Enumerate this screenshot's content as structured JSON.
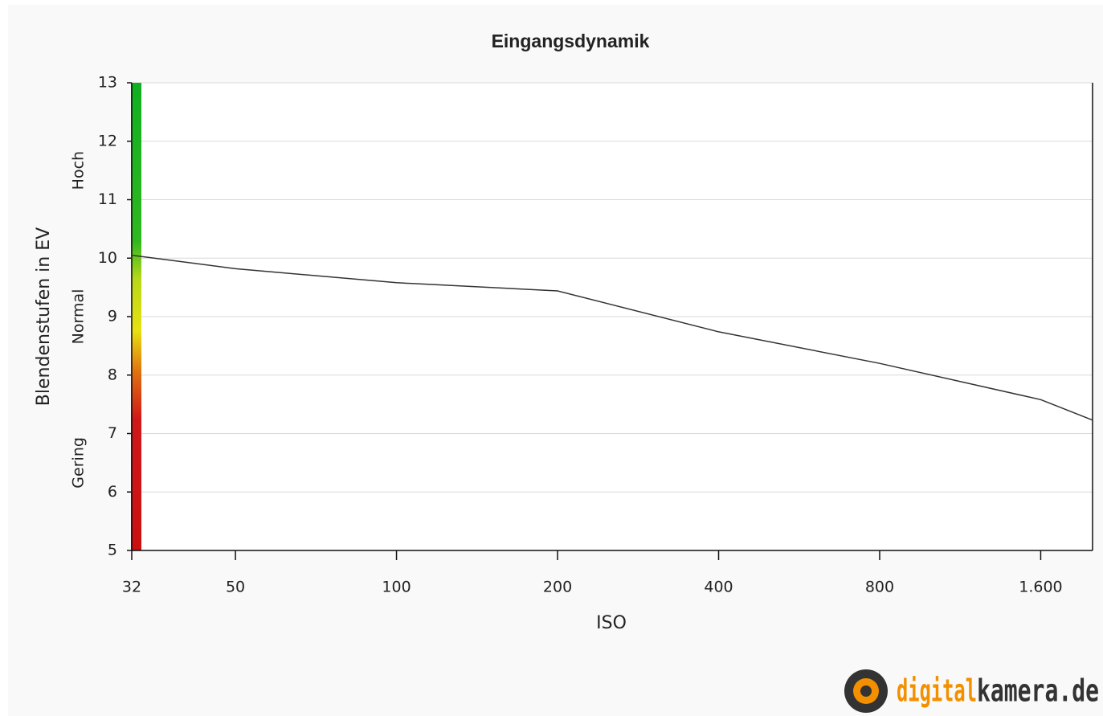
{
  "chart_data": {
    "type": "line",
    "title": "Eingangsdynamik",
    "x_label": "ISO",
    "y_label": "Blendenstufen in EV",
    "x": [
      32,
      50,
      100,
      200,
      400,
      800,
      1600,
      2000
    ],
    "series": [
      {
        "name": "Eingangsdynamik",
        "color": "#333333",
        "values": [
          10.05,
          9.82,
          9.58,
          9.44,
          8.74,
          8.2,
          7.58,
          7.23
        ]
      }
    ],
    "xscale": "log",
    "xlim": [
      32,
      2000
    ],
    "xticks": [
      32,
      50,
      100,
      200,
      400,
      800,
      {
        "value": 1600,
        "label": "1.600"
      }
    ],
    "ylim": [
      5,
      13
    ],
    "yticks": [
      5,
      6,
      7,
      8,
      9,
      10,
      11,
      12,
      13
    ],
    "grid": true,
    "bands": [
      {
        "label": "Gering",
        "from": 5,
        "to": 8
      },
      {
        "label": "Normal",
        "from": 8,
        "to": 10
      },
      {
        "label": "Hoch",
        "from": 10,
        "to": 13
      }
    ],
    "watermark": {
      "part1": "digital",
      "part2": "kamera.de"
    }
  }
}
